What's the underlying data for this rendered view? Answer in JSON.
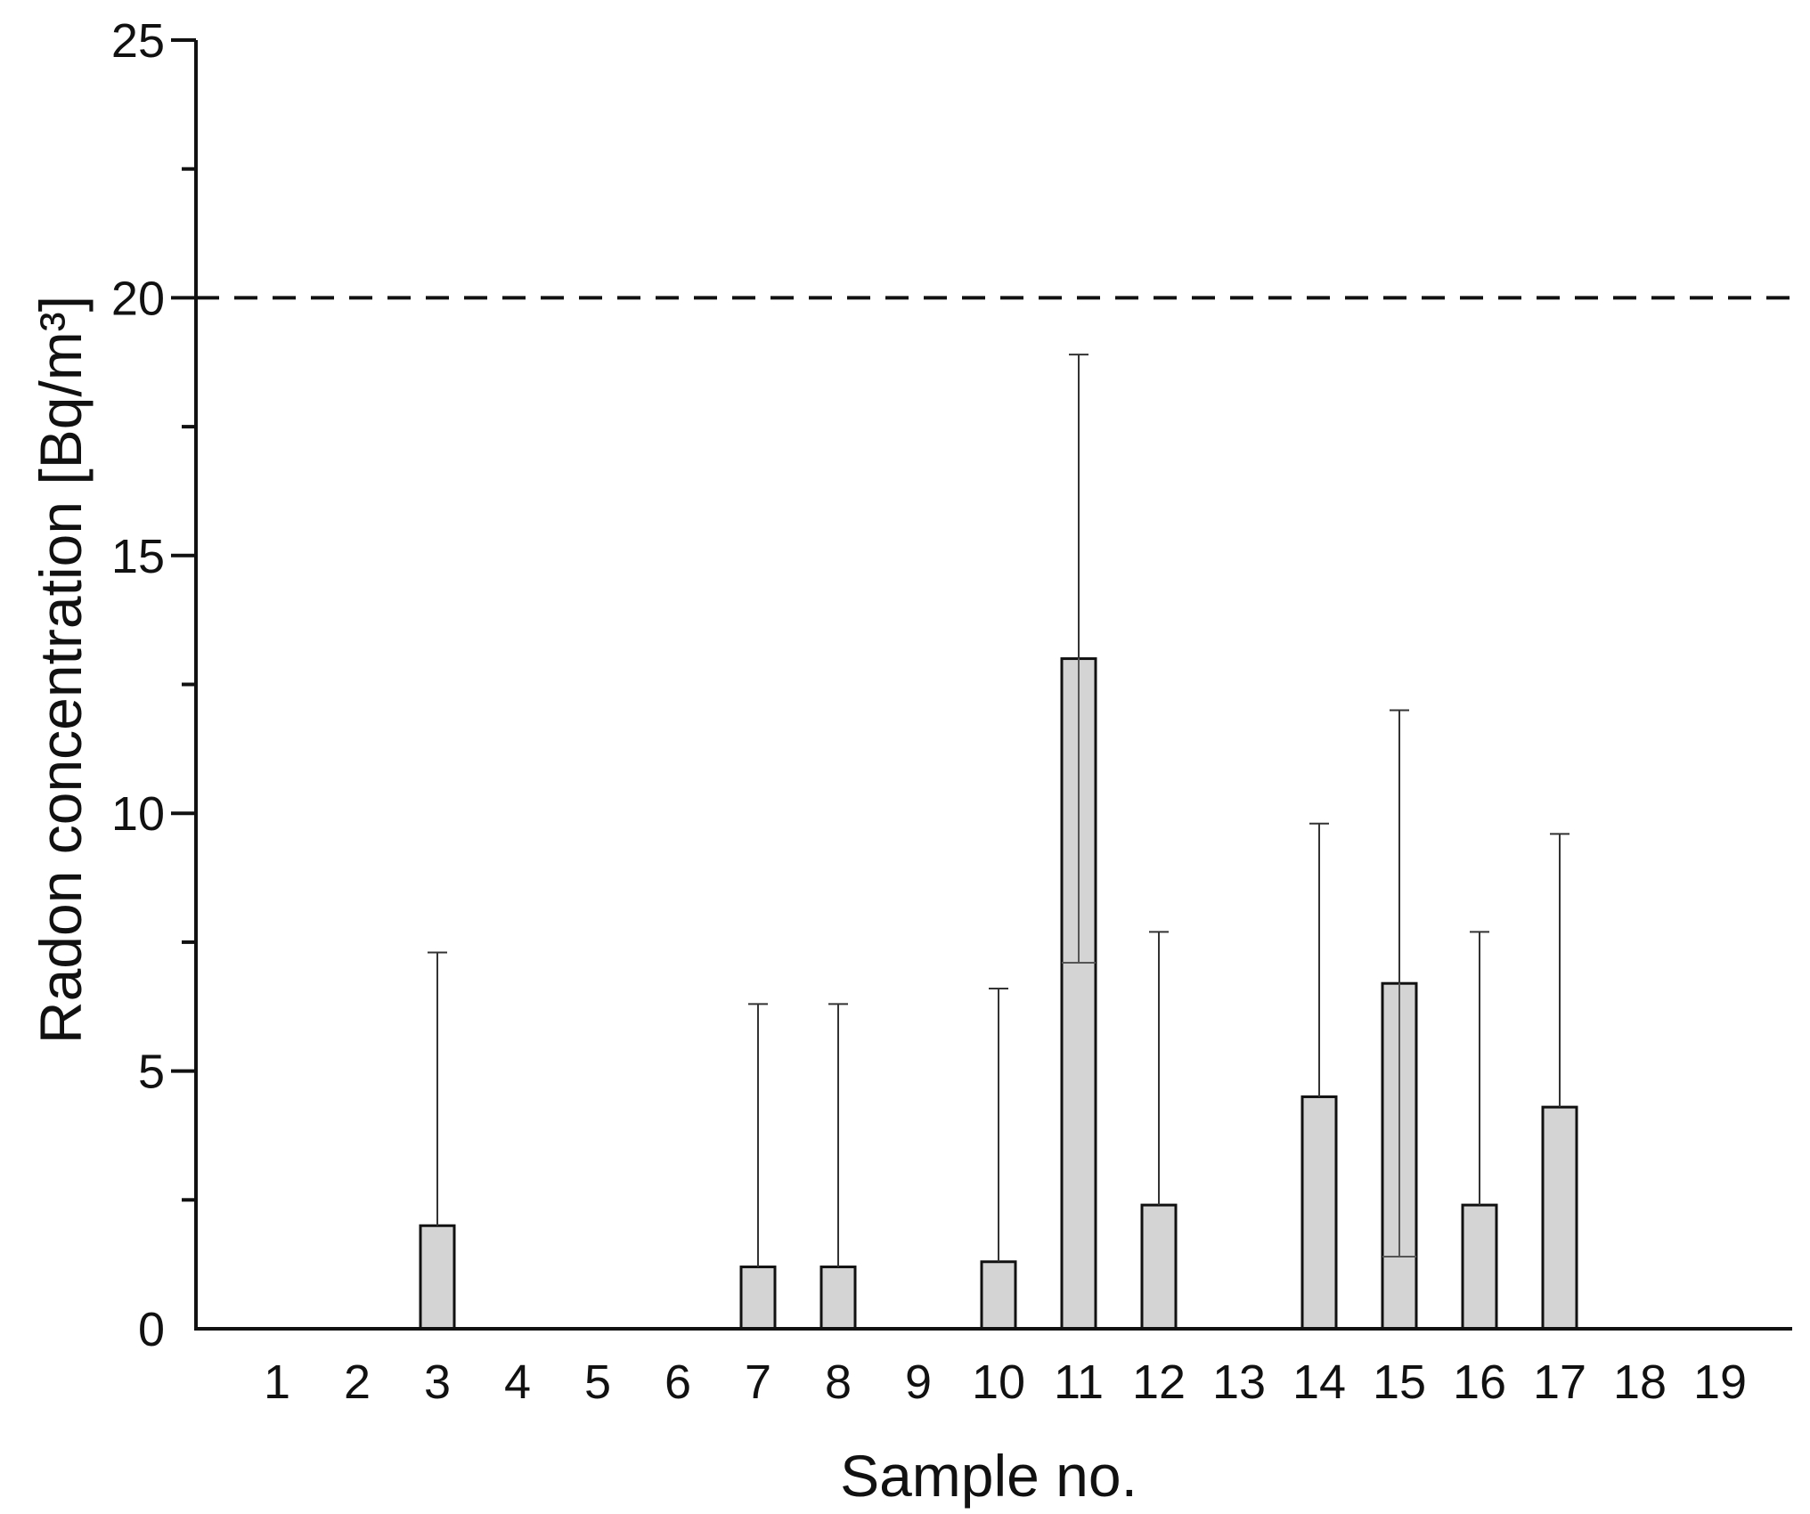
{
  "chart_data": {
    "type": "bar",
    "title": "",
    "xlabel": "Sample no.",
    "ylabel": "Radon concentration [Bq/m³]",
    "ylim": [
      0,
      25
    ],
    "yticks": [
      0,
      5,
      10,
      15,
      20,
      25
    ],
    "grid": false,
    "categories": [
      "1",
      "2",
      "3",
      "4",
      "5",
      "6",
      "7",
      "8",
      "9",
      "10",
      "11",
      "12",
      "13",
      "14",
      "15",
      "16",
      "17",
      "18",
      "19"
    ],
    "series": [
      {
        "values": [
          0,
          0,
          2.0,
          0,
          0,
          0,
          1.2,
          1.2,
          0,
          1.3,
          13.0,
          2.4,
          0,
          4.5,
          6.7,
          2.4,
          4.3,
          0,
          0
        ],
        "error_upper": [
          null,
          null,
          7.3,
          null,
          null,
          null,
          6.3,
          6.3,
          null,
          6.6,
          18.9,
          7.7,
          null,
          9.8,
          12.0,
          7.7,
          9.6,
          null,
          null
        ],
        "error_lower": [
          null,
          null,
          null,
          null,
          null,
          null,
          null,
          null,
          null,
          null,
          7.1,
          null,
          null,
          null,
          1.4,
          null,
          null,
          null,
          null
        ]
      }
    ],
    "reference_line": {
      "y": 20,
      "style": "dashed"
    },
    "colors": {
      "bar_fill": "#d4d4d4",
      "bar_edge": "#111111",
      "axis": "#111111",
      "error_bar": "#333333"
    }
  }
}
